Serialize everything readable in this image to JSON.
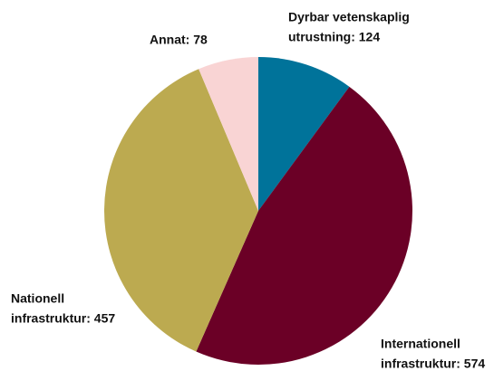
{
  "chart_data": {
    "type": "pie",
    "values": [
      124,
      574,
      457,
      78
    ],
    "value_labels": [
      [
        "Dyrbar vetenskaplig",
        "utrustning: 124"
      ],
      [
        "Internationell",
        "infrastruktur: 574"
      ],
      [
        "Nationell",
        "infrastruktur: 457"
      ],
      [
        "Annat: 78"
      ]
    ],
    "colors": [
      "#00739a",
      "#6b0026",
      "#bcaa50",
      "#f9d4d4"
    ],
    "start_angle": 90,
    "direction": "clockwise"
  }
}
